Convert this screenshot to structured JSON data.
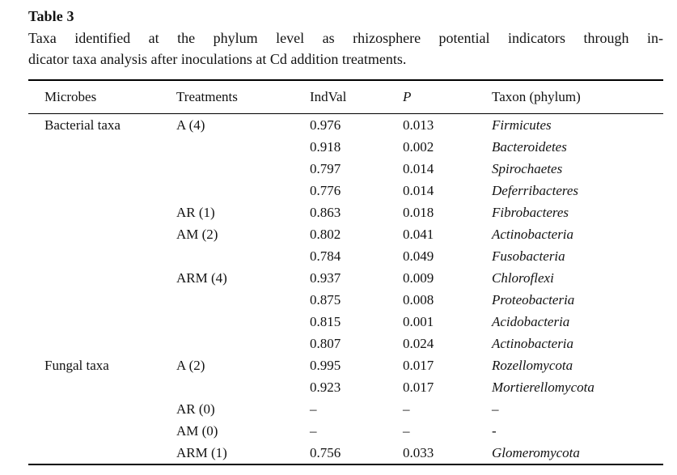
{
  "page": {
    "title": "Table 3",
    "caption_lines": [
      "Taxa identified at the phylum level as rhizosphere potential indicators through in-",
      "dicator taxa analysis after inoculations at Cd addition treatments."
    ]
  },
  "table": {
    "columns": {
      "microbes": "Microbes",
      "treatments": "Treatments",
      "indval": "IndVal",
      "p": "P",
      "taxon": "Taxon (phylum)"
    },
    "rows": [
      {
        "microbes": "Bacterial taxa",
        "treatment": "A (4)",
        "indval": "0.976",
        "p": "0.013",
        "taxon": "Firmicutes"
      },
      {
        "microbes": "",
        "treatment": "",
        "indval": "0.918",
        "p": "0.002",
        "taxon": "Bacteroidetes"
      },
      {
        "microbes": "",
        "treatment": "",
        "indval": "0.797",
        "p": "0.014",
        "taxon": "Spirochaetes"
      },
      {
        "microbes": "",
        "treatment": "",
        "indval": "0.776",
        "p": "0.014",
        "taxon": "Deferribacteres"
      },
      {
        "microbes": "",
        "treatment": "AR (1)",
        "indval": "0.863",
        "p": "0.018",
        "taxon": "Fibrobacteres"
      },
      {
        "microbes": "",
        "treatment": "AM (2)",
        "indval": "0.802",
        "p": "0.041",
        "taxon": "Actinobacteria"
      },
      {
        "microbes": "",
        "treatment": "",
        "indval": "0.784",
        "p": "0.049",
        "taxon": "Fusobacteria"
      },
      {
        "microbes": "",
        "treatment": "ARM (4)",
        "indval": "0.937",
        "p": "0.009",
        "taxon": "Chloroflexi"
      },
      {
        "microbes": "",
        "treatment": "",
        "indval": "0.875",
        "p": "0.008",
        "taxon": "Proteobacteria"
      },
      {
        "microbes": "",
        "treatment": "",
        "indval": "0.815",
        "p": "0.001",
        "taxon": "Acidobacteria"
      },
      {
        "microbes": "",
        "treatment": "",
        "indval": "0.807",
        "p": "0.024",
        "taxon": "Actinobacteria"
      },
      {
        "microbes": "Fungal taxa",
        "treatment": "A (2)",
        "indval": "0.995",
        "p": "0.017",
        "taxon": "Rozellomycota"
      },
      {
        "microbes": "",
        "treatment": "",
        "indval": "0.923",
        "p": "0.017",
        "taxon": "Mortierellomycota"
      },
      {
        "microbes": "",
        "treatment": "AR (0)",
        "indval": "–",
        "p": "–",
        "taxon": "–"
      },
      {
        "microbes": "",
        "treatment": "AM (0)",
        "indval": "–",
        "p": "–",
        "taxon": "-"
      },
      {
        "microbes": "",
        "treatment": "ARM (1)",
        "indval": "0.756",
        "p": "0.033",
        "taxon": "Glomeromycota"
      }
    ]
  }
}
